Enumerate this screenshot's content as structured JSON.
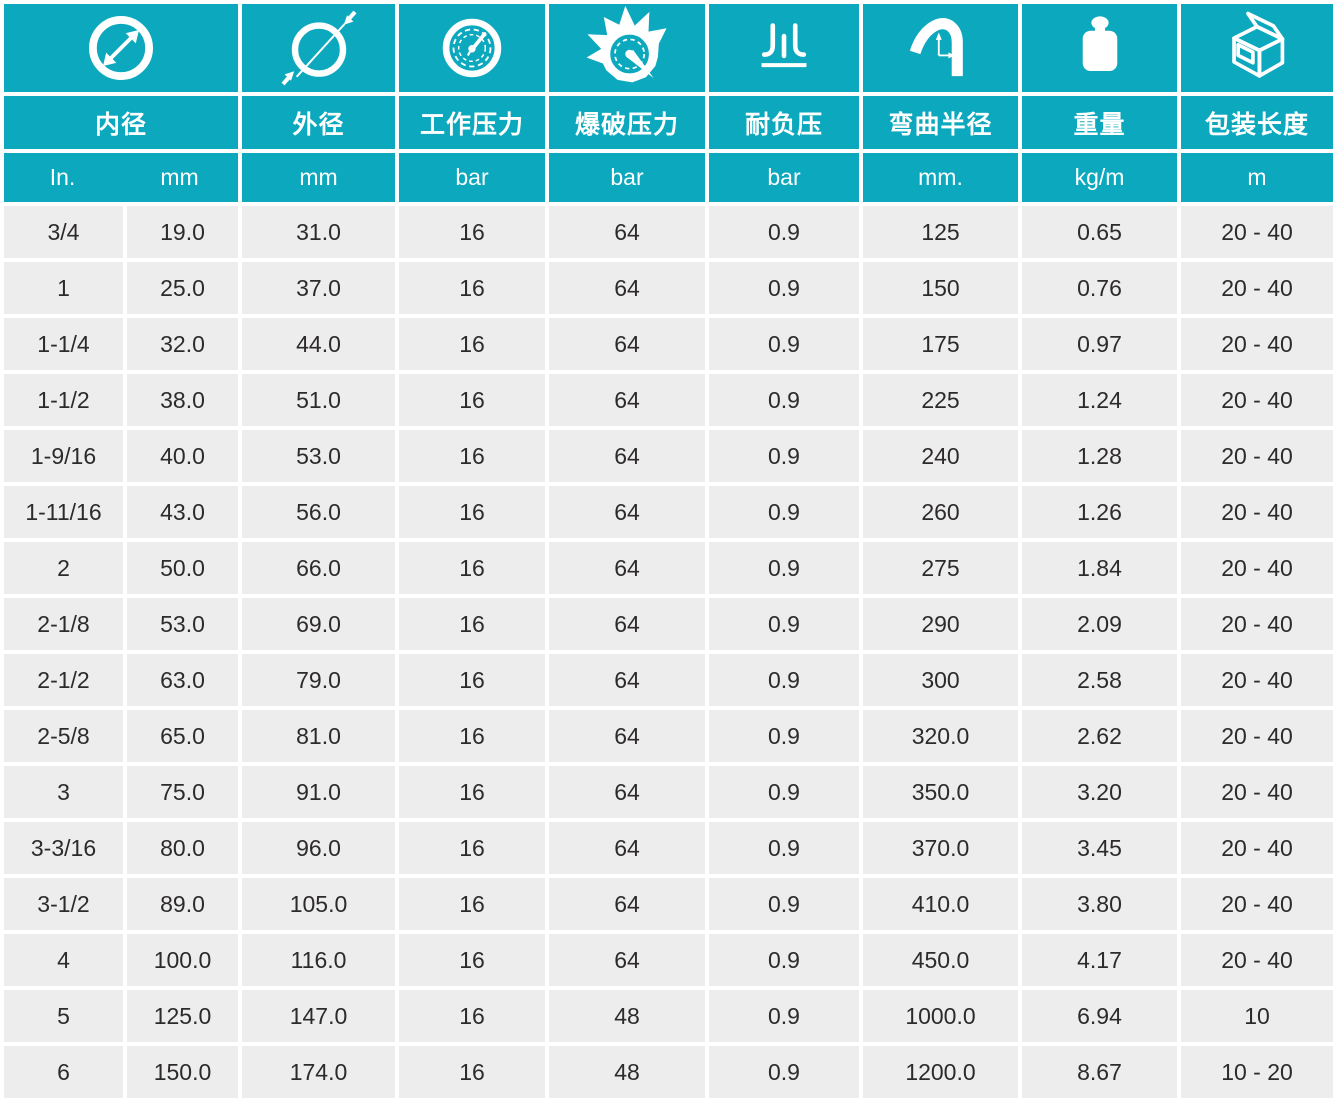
{
  "accent_color": "#0ba8be",
  "row_bg_color": "#ededed",
  "text_color": "#2d2a2b",
  "columns": [
    {
      "label": "内径",
      "icon": "inner-diameter-icon",
      "unit_in": "In.",
      "unit_mm": "mm"
    },
    {
      "label": "外径",
      "icon": "outer-diameter-icon",
      "unit": "mm"
    },
    {
      "label": "工作压力",
      "icon": "working-pressure-icon",
      "unit": "bar"
    },
    {
      "label": "爆破压力",
      "icon": "burst-pressure-icon",
      "unit": "bar"
    },
    {
      "label": "耐负压",
      "icon": "vacuum-icon",
      "unit": "bar"
    },
    {
      "label": "弯曲半径",
      "icon": "bend-radius-icon",
      "unit": "mm."
    },
    {
      "label": "重量",
      "icon": "weight-icon",
      "unit": "kg/m"
    },
    {
      "label": "包装长度",
      "icon": "package-icon",
      "unit": "m"
    }
  ],
  "cell_names": [
    "id-inch",
    "id-mm",
    "od-mm",
    "working-pressure",
    "burst-pressure",
    "vacuum",
    "bend-radius",
    "weight",
    "packing-length"
  ],
  "rows": [
    [
      "3/4",
      "19.0",
      "31.0",
      "16",
      "64",
      "0.9",
      "125",
      "0.65",
      "20 - 40"
    ],
    [
      "1",
      "25.0",
      "37.0",
      "16",
      "64",
      "0.9",
      "150",
      "0.76",
      "20 - 40"
    ],
    [
      "1-1/4",
      "32.0",
      "44.0",
      "16",
      "64",
      "0.9",
      "175",
      "0.97",
      "20 - 40"
    ],
    [
      "1-1/2",
      "38.0",
      "51.0",
      "16",
      "64",
      "0.9",
      "225",
      "1.24",
      "20 - 40"
    ],
    [
      "1-9/16",
      "40.0",
      "53.0",
      "16",
      "64",
      "0.9",
      "240",
      "1.28",
      "20 - 40"
    ],
    [
      "1-11/16",
      "43.0",
      "56.0",
      "16",
      "64",
      "0.9",
      "260",
      "1.26",
      "20 - 40"
    ],
    [
      "2",
      "50.0",
      "66.0",
      "16",
      "64",
      "0.9",
      "275",
      "1.84",
      "20 - 40"
    ],
    [
      "2-1/8",
      "53.0",
      "69.0",
      "16",
      "64",
      "0.9",
      "290",
      "2.09",
      "20 - 40"
    ],
    [
      "2-1/2",
      "63.0",
      "79.0",
      "16",
      "64",
      "0.9",
      "300",
      "2.58",
      "20 - 40"
    ],
    [
      "2-5/8",
      "65.0",
      "81.0",
      "16",
      "64",
      "0.9",
      "320.0",
      "2.62",
      "20 - 40"
    ],
    [
      "3",
      "75.0",
      "91.0",
      "16",
      "64",
      "0.9",
      "350.0",
      "3.20",
      "20 - 40"
    ],
    [
      "3-3/16",
      "80.0",
      "96.0",
      "16",
      "64",
      "0.9",
      "370.0",
      "3.45",
      "20 - 40"
    ],
    [
      "3-1/2",
      "89.0",
      "105.0",
      "16",
      "64",
      "0.9",
      "410.0",
      "3.80",
      "20 - 40"
    ],
    [
      "4",
      "100.0",
      "116.0",
      "16",
      "64",
      "0.9",
      "450.0",
      "4.17",
      "20 - 40"
    ],
    [
      "5",
      "125.0",
      "147.0",
      "16",
      "48",
      "0.9",
      "1000.0",
      "6.94",
      "10"
    ],
    [
      "6",
      "150.0",
      "174.0",
      "16",
      "48",
      "0.9",
      "1200.0",
      "8.67",
      "10 - 20"
    ]
  ]
}
